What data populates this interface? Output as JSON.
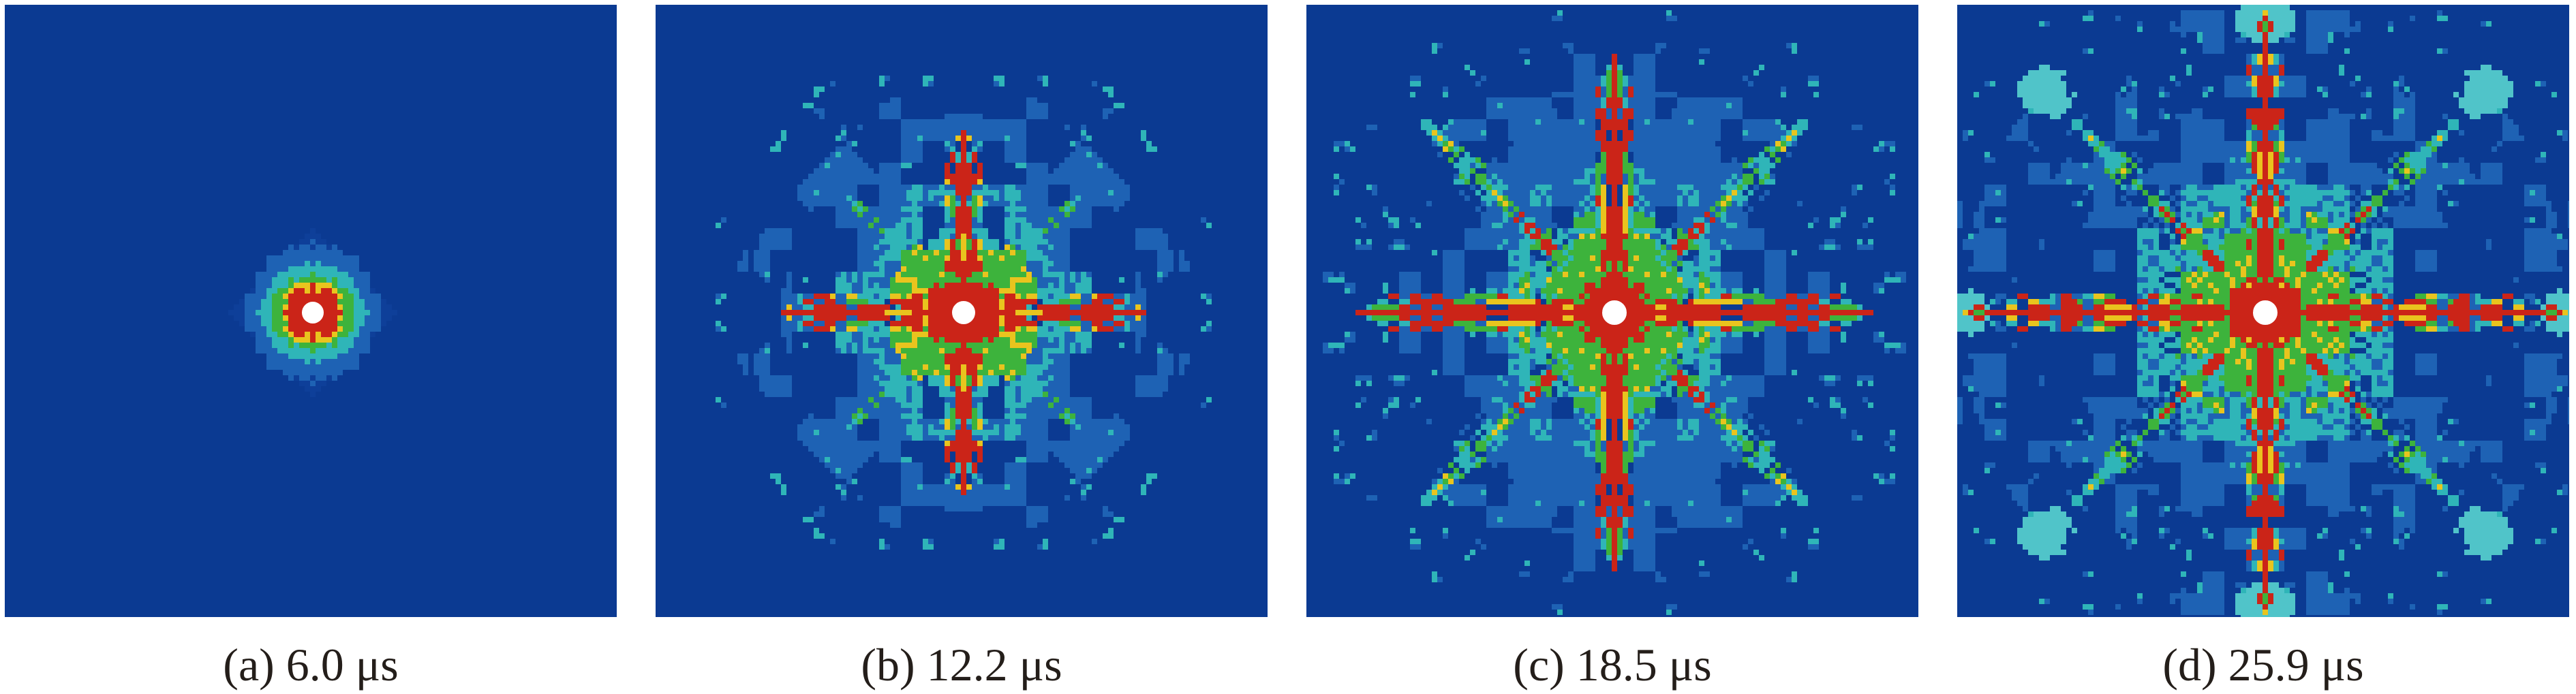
{
  "figure": {
    "page_background": "#ffffff",
    "caption_color": "#241e1a",
    "colormap": {
      "background_blue": "#0b3a92",
      "halo_blue": "#0e3f99",
      "medium_blue": "#1e62b4",
      "cyan": "#2fb5b8",
      "light_cyan": "#50c4c9",
      "green": "#3db33c",
      "yellow": "#e9c41e",
      "red": "#cb2418",
      "core_white": "#ffffff"
    },
    "panels": [
      {
        "id": "a",
        "caption": "(a) 6.0 μs",
        "time_value": "6.0",
        "time_unit": "μs",
        "render": {
          "type": "rings",
          "seed": 5,
          "whiteR": 16
        }
      },
      {
        "id": "b",
        "caption": "(b) 12.2 μs",
        "time_value": "12.2",
        "time_unit": "μs",
        "render": {
          "type": "star",
          "seed": 11,
          "armLen": 34,
          "greenR": 15,
          "cyanR": 20,
          "fieldR": 38,
          "diagLen": 30,
          "diagHot": false,
          "diagBlobs": true,
          "coreRed": 6,
          "whiteR": 17
        }
      },
      {
        "id": "c",
        "caption": "(c) 18.5 μs",
        "time_value": "18.5",
        "time_unit": "μs",
        "render": {
          "type": "star",
          "seed": 23,
          "armLen": 48,
          "greenR": 16,
          "cyanR": 23,
          "fieldR": 46,
          "diagLen": 50,
          "diagHot": true,
          "diagBlobs": false,
          "coreRed": 6,
          "whiteR": 18
        }
      },
      {
        "id": "d",
        "caption": "(d) 25.9 μs",
        "time_value": "25.9",
        "time_unit": "μs",
        "render": {
          "type": "star",
          "seed": 37,
          "armLen": 56,
          "greenR": 17,
          "cyanR": 25,
          "fieldR": 52,
          "diagLen": 54,
          "diagHot": true,
          "diagBlobs": false,
          "coreRed": 6.5,
          "whiteR": 18,
          "tips": {
            "axis": 54,
            "diag": 40,
            "size": 4.5
          }
        }
      }
    ]
  }
}
